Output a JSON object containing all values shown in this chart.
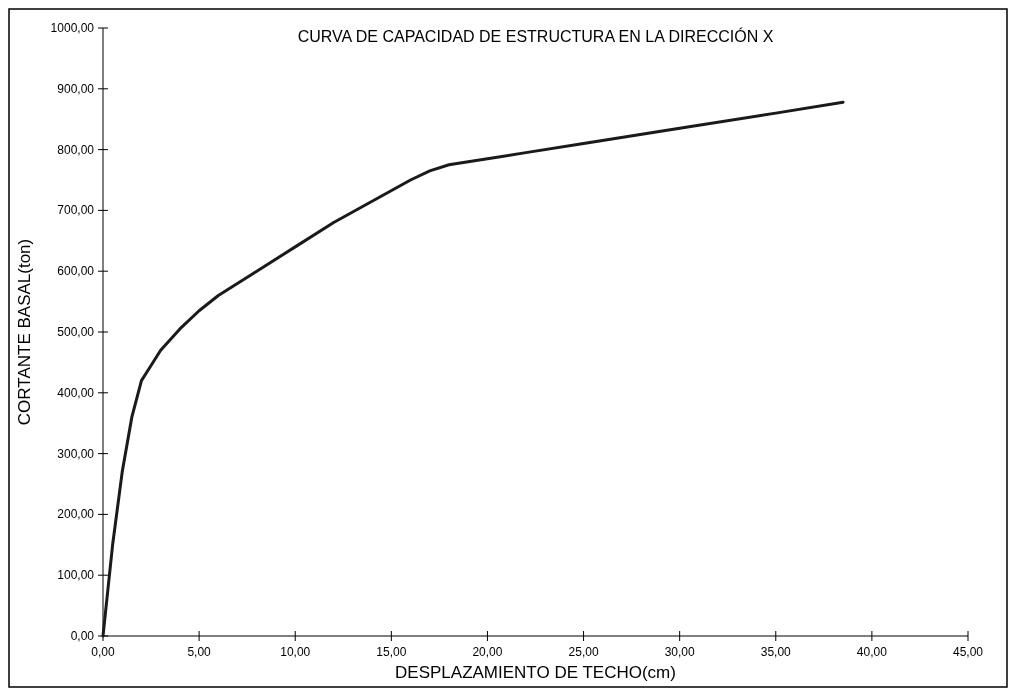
{
  "chart_data": {
    "type": "line",
    "title": "CURVA DE CAPACIDAD DE ESTRUCTURA EN LA DIRECCIÓN X",
    "xlabel": "DESPLAZAMIENTO DE TECHO(cm)",
    "ylabel": "CORTANTE BASAL(ton)",
    "xlim": [
      0,
      45
    ],
    "xticks": [
      {
        "value": 0,
        "label": "0,00"
      },
      {
        "value": 5,
        "label": "5,00"
      },
      {
        "value": 10,
        "label": "10,00"
      },
      {
        "value": 15,
        "label": "15,00"
      },
      {
        "value": 20,
        "label": "20,00"
      },
      {
        "value": 25,
        "label": "25,00"
      },
      {
        "value": 30,
        "label": "30,00"
      },
      {
        "value": 35,
        "label": "35,00"
      },
      {
        "value": 40,
        "label": "40,00"
      },
      {
        "value": 45,
        "label": "45,00"
      }
    ],
    "ylim": [
      0,
      1000
    ],
    "yticks": [
      {
        "value": 0,
        "label": "0,00"
      },
      {
        "value": 100,
        "label": "100,00"
      },
      {
        "value": 200,
        "label": "200,00"
      },
      {
        "value": 300,
        "label": "300,00"
      },
      {
        "value": 400,
        "label": "400,00"
      },
      {
        "value": 500,
        "label": "500,00"
      },
      {
        "value": 600,
        "label": "600,00"
      },
      {
        "value": 700,
        "label": "700,00"
      },
      {
        "value": 800,
        "label": "800,00"
      },
      {
        "value": 900,
        "label": "900,00"
      },
      {
        "value": 1000,
        "label": "1000,00"
      }
    ],
    "grid": false,
    "marker": "none",
    "line_style": "solid",
    "series": [
      {
        "color": "#1a1a1a",
        "x": [
          0,
          0.5,
          1,
          1.5,
          2,
          2.5,
          3,
          4,
          5,
          6,
          8,
          10,
          12,
          14,
          16,
          17,
          18,
          20,
          22,
          25,
          30,
          35,
          38.5
        ],
        "values": [
          0,
          150,
          270,
          360,
          420,
          445,
          470,
          505,
          535,
          560,
          600,
          640,
          680,
          715,
          750,
          765,
          775,
          785,
          795,
          810,
          835,
          860,
          878
        ]
      }
    ]
  }
}
